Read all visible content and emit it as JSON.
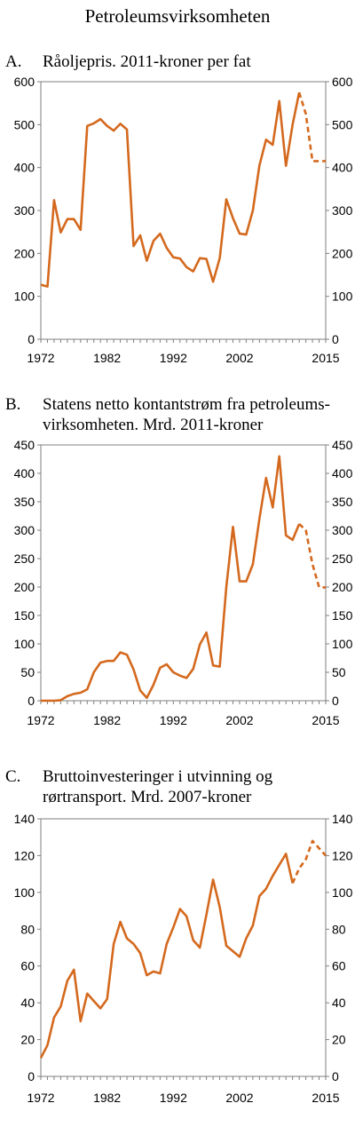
{
  "figure_title": "Petroleumsvirksomheten",
  "colors": {
    "series": "#d4691e",
    "axis": "#7f7f7f"
  },
  "panels": [
    {
      "letter": "A.",
      "title": "Råoljepris. 2011-kroner per fat"
    },
    {
      "letter": "B.",
      "title": "Statens netto kontantstrøm fra petroleums-\nvirksomheten. Mrd. 2011-kroner"
    },
    {
      "letter": "C.",
      "title": "Bruttoinvesteringer i utvinning og\nrørtransport. Mrd. 2007-kroner"
    }
  ],
  "chart_data": [
    {
      "type": "line",
      "title": "Råoljepris. 2011-kroner per fat",
      "xlabel": "",
      "ylabel": "",
      "xlim": [
        1972,
        2015
      ],
      "ylim": [
        0,
        600
      ],
      "yticks": [
        0,
        100,
        200,
        300,
        400,
        500,
        600
      ],
      "xticks": [
        1972,
        1982,
        1992,
        2002,
        2015
      ],
      "grid": false,
      "series": [
        {
          "style": "solid",
          "x": [
            1972,
            1973,
            1974,
            1975,
            1976,
            1977,
            1978,
            1979,
            1980,
            1981,
            1982,
            1983,
            1984,
            1985,
            1986,
            1987,
            1988,
            1989,
            1990,
            1991,
            1992,
            1993,
            1994,
            1995,
            1996,
            1997,
            1998,
            1999,
            2000,
            2001,
            2002,
            2003,
            2004,
            2005,
            2006,
            2007,
            2008,
            2009,
            2010,
            2011
          ],
          "y": [
            127,
            123,
            324,
            249,
            280,
            280,
            255,
            497,
            503,
            513,
            497,
            486,
            502,
            489,
            217,
            242,
            183,
            229,
            246,
            213,
            191,
            188,
            168,
            158,
            189,
            187,
            134,
            189,
            326,
            282,
            246,
            244,
            300,
            405,
            465,
            453,
            555,
            404,
            500,
            575
          ]
        },
        {
          "style": "dashed",
          "x": [
            2011,
            2012,
            2013,
            2014,
            2015
          ],
          "y": [
            575,
            525,
            415,
            415,
            415
          ]
        }
      ]
    },
    {
      "type": "line",
      "title": "Statens netto kontantstrøm fra petroleumsvirksomheten. Mrd. 2011-kroner",
      "xlabel": "",
      "ylabel": "",
      "xlim": [
        1972,
        2015
      ],
      "ylim": [
        0,
        450
      ],
      "yticks": [
        0,
        50,
        100,
        150,
        200,
        250,
        300,
        350,
        400,
        450
      ],
      "xticks": [
        1972,
        1982,
        1992,
        2002,
        2015
      ],
      "grid": false,
      "series": [
        {
          "style": "solid",
          "x": [
            1972,
            1973,
            1974,
            1975,
            1976,
            1977,
            1978,
            1979,
            1980,
            1981,
            1982,
            1983,
            1984,
            1985,
            1986,
            1987,
            1988,
            1989,
            1990,
            1991,
            1992,
            1993,
            1994,
            1995,
            1996,
            1997,
            1998,
            1999,
            2000,
            2001,
            2002,
            2003,
            2004,
            2005,
            2006,
            2007,
            2008,
            2009,
            2010,
            2011
          ],
          "y": [
            0,
            0,
            0,
            1,
            8,
            12,
            14,
            20,
            50,
            67,
            70,
            70,
            85,
            81,
            55,
            18,
            5,
            28,
            58,
            64,
            50,
            44,
            40,
            56,
            99,
            120,
            62,
            60,
            200,
            306,
            210,
            210,
            240,
            320,
            392,
            340,
            430,
            291,
            283,
            311
          ]
        },
        {
          "style": "dashed",
          "x": [
            2011,
            2012,
            2013,
            2014,
            2015
          ],
          "y": [
            311,
            300,
            240,
            200,
            199
          ]
        }
      ]
    },
    {
      "type": "line",
      "title": "Bruttoinvesteringer i utvinning og rørtransport. Mrd. 2007-kroner",
      "xlabel": "",
      "ylabel": "",
      "xlim": [
        1972,
        2015
      ],
      "ylim": [
        0,
        140
      ],
      "yticks": [
        0,
        20,
        40,
        60,
        80,
        100,
        120,
        140
      ],
      "xticks": [
        1972,
        1982,
        1992,
        2002,
        2015
      ],
      "grid": false,
      "series": [
        {
          "style": "solid",
          "x": [
            1972,
            1973,
            1974,
            1975,
            1976,
            1977,
            1978,
            1979,
            1980,
            1981,
            1982,
            1983,
            1984,
            1985,
            1986,
            1987,
            1988,
            1989,
            1990,
            1991,
            1992,
            1993,
            1994,
            1995,
            1996,
            1997,
            1998,
            1999,
            2000,
            2001,
            2002,
            2003,
            2004,
            2005,
            2006,
            2007,
            2008,
            2009,
            2010
          ],
          "y": [
            10,
            17,
            32,
            38,
            52,
            58,
            30,
            45,
            41,
            37,
            42,
            72,
            84,
            75,
            72,
            67,
            55,
            57,
            56,
            72,
            81,
            91,
            87,
            74,
            70,
            88,
            107,
            92,
            71,
            68,
            65,
            75,
            82,
            98,
            102,
            109,
            115,
            121,
            105
          ]
        },
        {
          "style": "dashed",
          "x": [
            2010,
            2011,
            2012,
            2013,
            2014,
            2015
          ],
          "y": [
            105,
            113,
            118,
            128,
            124,
            120
          ]
        }
      ]
    }
  ]
}
